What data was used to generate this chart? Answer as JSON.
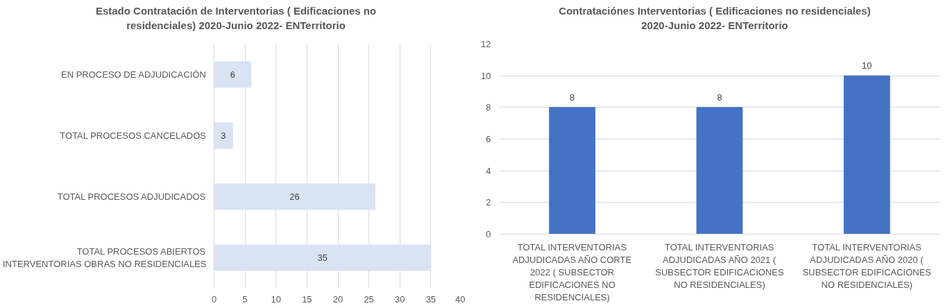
{
  "chart_data": [
    {
      "type": "bar",
      "orientation": "horizontal",
      "title": "Estado Contratación de Interventorias ( Edificaciones no residenciales) 2020-Junio 2022- ENTerritorio",
      "categories": [
        "EN PROCESO DE ADJUDICACIÓN",
        "TOTAL PROCESOS CANCELADOS",
        "TOTAL PROCESOS ADJUDICADOS",
        "TOTAL PROCESOS ABIERTOS INTERVENTORIAS OBRAS NO RESIDENCIALES"
      ],
      "values": [
        6,
        3,
        26,
        35
      ],
      "color": "#dae3f3",
      "xlim": [
        0,
        40
      ],
      "xticks": [
        0,
        5,
        10,
        15,
        20,
        25,
        30,
        35,
        40
      ],
      "grid": "x",
      "data_labels": true
    },
    {
      "type": "bar",
      "title": "Contrataciónes Interventorias ( Edificaciones no residenciales) 2020-Junio 2022- ENTerritorio",
      "categories": [
        "TOTAL INTERVENTORIAS ADJUDICADAS AÑO CORTE 2022 ( SUBSECTOR EDIFICACIONES NO RESIDENCIALES)",
        "TOTAL INTERVENTORIAS ADJUDICADAS AÑO 2021 ( SUBSECTOR EDIFICACIONES NO RESIDENCIALES)",
        "TOTAL INTERVENTORIAS ADJUDICADAS AÑO 2020 ( SUBSECTOR EDIFICACIONES NO RESIDENCIALES)"
      ],
      "values": [
        8,
        8,
        10
      ],
      "color": "#4472c4",
      "ylim": [
        0,
        12
      ],
      "yticks": [
        0,
        2,
        4,
        6,
        8,
        10,
        12
      ],
      "grid": "y",
      "data_labels": true
    }
  ]
}
